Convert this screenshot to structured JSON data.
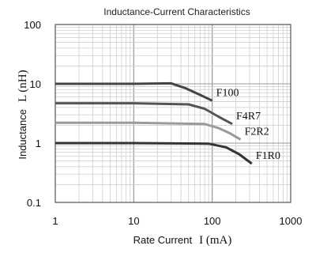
{
  "chart_data": {
    "type": "line",
    "title": "Inductance-Current Characteristics",
    "xlabel": "Rate Current",
    "xlabel_symbol": "I (mA)",
    "ylabel": "Inductance",
    "ylabel_symbol": "L (nH)",
    "x_scale": "log",
    "y_scale": "log",
    "xlim": [
      1,
      1000
    ],
    "ylim": [
      0.1,
      100
    ],
    "x_ticks": [
      "1",
      "10",
      "100",
      "1000"
    ],
    "y_ticks": [
      "100",
      "10",
      "1",
      "0.1"
    ],
    "grid": true,
    "series": [
      {
        "name": "F100",
        "color": "#444444",
        "x": [
          1,
          10,
          30,
          45,
          70,
          100
        ],
        "y": [
          10,
          10,
          10.2,
          8.5,
          6.5,
          5.2
        ]
      },
      {
        "name": "F4R7",
        "color": "#555555",
        "x": [
          1,
          10,
          50,
          80,
          120,
          180
        ],
        "y": [
          4.7,
          4.7,
          4.5,
          3.8,
          2.8,
          2.1
        ]
      },
      {
        "name": "F2R2",
        "color": "#9a9a9a",
        "x": [
          1,
          10,
          80,
          120,
          170,
          230
        ],
        "y": [
          2.2,
          2.2,
          2.1,
          1.8,
          1.45,
          1.15
        ]
      },
      {
        "name": "F1R0",
        "color": "#333333",
        "x": [
          1,
          10,
          90,
          150,
          220,
          320
        ],
        "y": [
          1.0,
          1.0,
          0.98,
          0.85,
          0.65,
          0.45
        ]
      }
    ]
  }
}
